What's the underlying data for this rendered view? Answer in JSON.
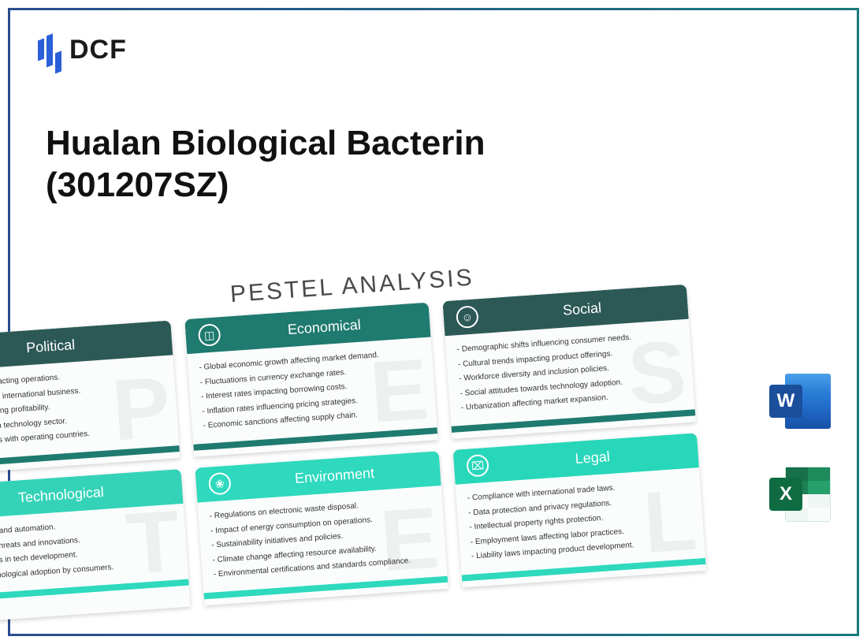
{
  "logo": {
    "text": "DCF"
  },
  "title": "Hualan Biological Bacterin (301207SZ)",
  "pestel": {
    "heading": "PESTEL ANALYSIS",
    "colors": {
      "dark_header": "#2c5956",
      "mid_header": "#1f7a6f",
      "light_header": "#2ed9be",
      "footer_dark": "#1f7a6f",
      "footer_light": "#2ed9be",
      "card_bg": "#fbfdfd",
      "body_text": "#333333"
    },
    "cards": [
      {
        "id": "political",
        "title": "Political",
        "icon": "doc-icon",
        "letter": "P",
        "items": [
          "rnment stability impacting operations.",
          "de policies affecting international business.",
          "ation rates influencing profitability.",
          "gulatory changes in technology sector.",
          "olitical relationships with operating countries."
        ]
      },
      {
        "id": "economical",
        "title": "Economical",
        "icon": "chart-icon",
        "letter": "E",
        "items": [
          "- Global economic growth affecting market demand.",
          "- Fluctuations in currency exchange rates.",
          "- Interest rates impacting borrowing costs.",
          "- Inflation rates influencing pricing strategies.",
          "- Economic sanctions affecting supply chain."
        ]
      },
      {
        "id": "social",
        "title": "Social",
        "icon": "person-icon",
        "letter": "S",
        "items": [
          "- Demographic shifts influencing consumer needs.",
          "- Cultural trends impacting product offerings.",
          "- Workforce diversity and inclusion policies.",
          "- Social attitudes towards technology adoption.",
          "- Urbanization affecting market expansion."
        ]
      },
      {
        "id": "technological",
        "title": "Technological",
        "icon": "gear-icon",
        "letter": "T",
        "items": [
          "- Advances in AI and automation.",
          "- Cybersecurity threats and innovations.",
          "- High R&D costs in tech development.",
          "- Speed of technological adoption by consumers."
        ]
      },
      {
        "id": "environment",
        "title": "Environment",
        "icon": "leaf-icon",
        "letter": "E",
        "items": [
          "- Regulations on electronic waste disposal.",
          "- Impact of energy consumption on operations.",
          "- Sustainability initiatives and policies.",
          "- Climate change affecting resource availability.",
          "- Environmental certifications and standards compliance."
        ]
      },
      {
        "id": "legal",
        "title": "Legal",
        "icon": "briefcase-icon",
        "letter": "L",
        "items": [
          "- Compliance with international trade laws.",
          "- Data protection and privacy regulations.",
          "- Intellectual property rights protection.",
          "- Employment laws affecting labor practices.",
          "- Liability laws impacting product development."
        ]
      }
    ]
  },
  "file_icons": {
    "word": "W",
    "excel": "X"
  }
}
